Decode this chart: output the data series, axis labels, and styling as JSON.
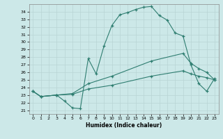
{
  "xlabel": "Humidex (Indice chaleur)",
  "bg_color": "#cce8e8",
  "line_color": "#2e7d70",
  "xlim": [
    -0.5,
    23.5
  ],
  "ylim": [
    20.5,
    35.0
  ],
  "yticks": [
    21,
    22,
    23,
    24,
    25,
    26,
    27,
    28,
    29,
    30,
    31,
    32,
    33,
    34
  ],
  "xticks": [
    0,
    1,
    2,
    3,
    4,
    5,
    6,
    7,
    8,
    9,
    10,
    11,
    12,
    13,
    14,
    15,
    16,
    17,
    18,
    19,
    20,
    21,
    22,
    23
  ],
  "curve1_x": [
    0,
    1,
    3,
    4,
    5,
    6,
    7,
    8,
    9,
    10,
    11,
    12,
    13,
    14,
    15,
    16,
    17,
    18,
    19,
    20,
    21,
    22,
    23
  ],
  "curve1_y": [
    23.5,
    22.8,
    23.0,
    22.2,
    21.3,
    21.2,
    27.8,
    25.8,
    29.5,
    32.2,
    33.6,
    33.9,
    34.3,
    34.6,
    34.7,
    33.5,
    32.9,
    31.2,
    30.8,
    27.0,
    24.5,
    23.5,
    25.2
  ],
  "curve2_x": [
    0,
    1,
    3,
    5,
    7,
    10,
    15,
    19,
    20,
    21,
    22,
    23
  ],
  "curve2_y": [
    23.5,
    22.8,
    23.0,
    23.2,
    24.5,
    25.5,
    27.5,
    28.5,
    27.2,
    26.5,
    26.0,
    25.0
  ],
  "curve3_x": [
    0,
    1,
    3,
    5,
    7,
    10,
    15,
    19,
    20,
    21,
    22,
    23
  ],
  "curve3_y": [
    23.5,
    22.8,
    23.0,
    23.1,
    23.8,
    24.3,
    25.5,
    26.2,
    25.8,
    25.5,
    25.3,
    25.0
  ]
}
